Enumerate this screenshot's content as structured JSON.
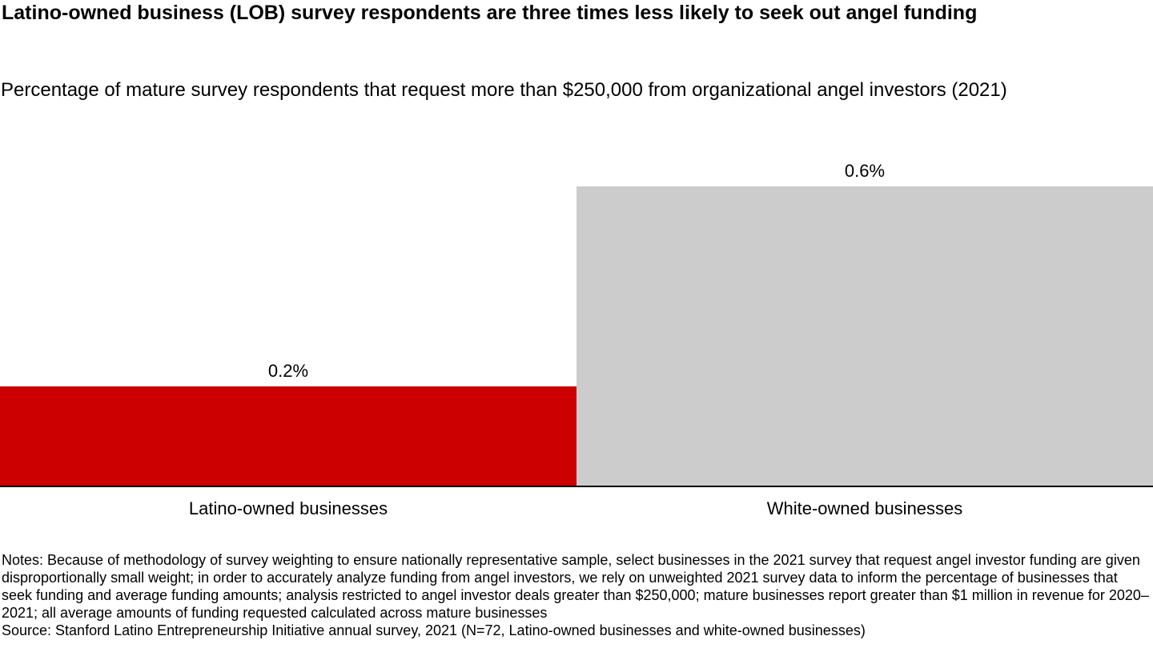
{
  "title": "Latino-owned business (LOB) survey respondents are three times less likely to seek out angel funding",
  "subtitle": "Percentage of mature survey respondents that request more than $250,000 from organizational angel investors (2021)",
  "chart_data": {
    "type": "bar",
    "categories": [
      "Latino-owned businesses",
      "White-owned businesses"
    ],
    "values": [
      0.2,
      0.6
    ],
    "value_labels": [
      "0.2%",
      "0.6%"
    ],
    "colors": [
      "#cc0000",
      "#cccccc"
    ],
    "title": "Latino-owned business (LOB) survey respondents are three times less likely to seek out angel funding",
    "subtitle": "Percentage of mature survey respondents that request more than $250,000 from organizational angel investors (2021)",
    "xlabel": "",
    "ylabel": "",
    "ylim": [
      0,
      0.72
    ],
    "grid": false,
    "legend": "none"
  },
  "notes": "Notes: Because of methodology of survey weighting to ensure nationally representative sample, select businesses in the 2021 survey that request angel investor funding are given disproportionally small weight; in order to accurately analyze funding from angel investors, we rely on unweighted 2021 survey data to inform the percentage of businesses that seek funding and average funding amounts; analysis restricted to angel investor deals greater than $250,000; mature businesses report greater than $1 million in revenue for 2020–2021; all average amounts of funding requested calculated across mature businesses",
  "source": "Source: Stanford Latino Entrepreneurship Initiative annual survey, 2021 (N=72, Latino-owned businesses and white-owned businesses)"
}
